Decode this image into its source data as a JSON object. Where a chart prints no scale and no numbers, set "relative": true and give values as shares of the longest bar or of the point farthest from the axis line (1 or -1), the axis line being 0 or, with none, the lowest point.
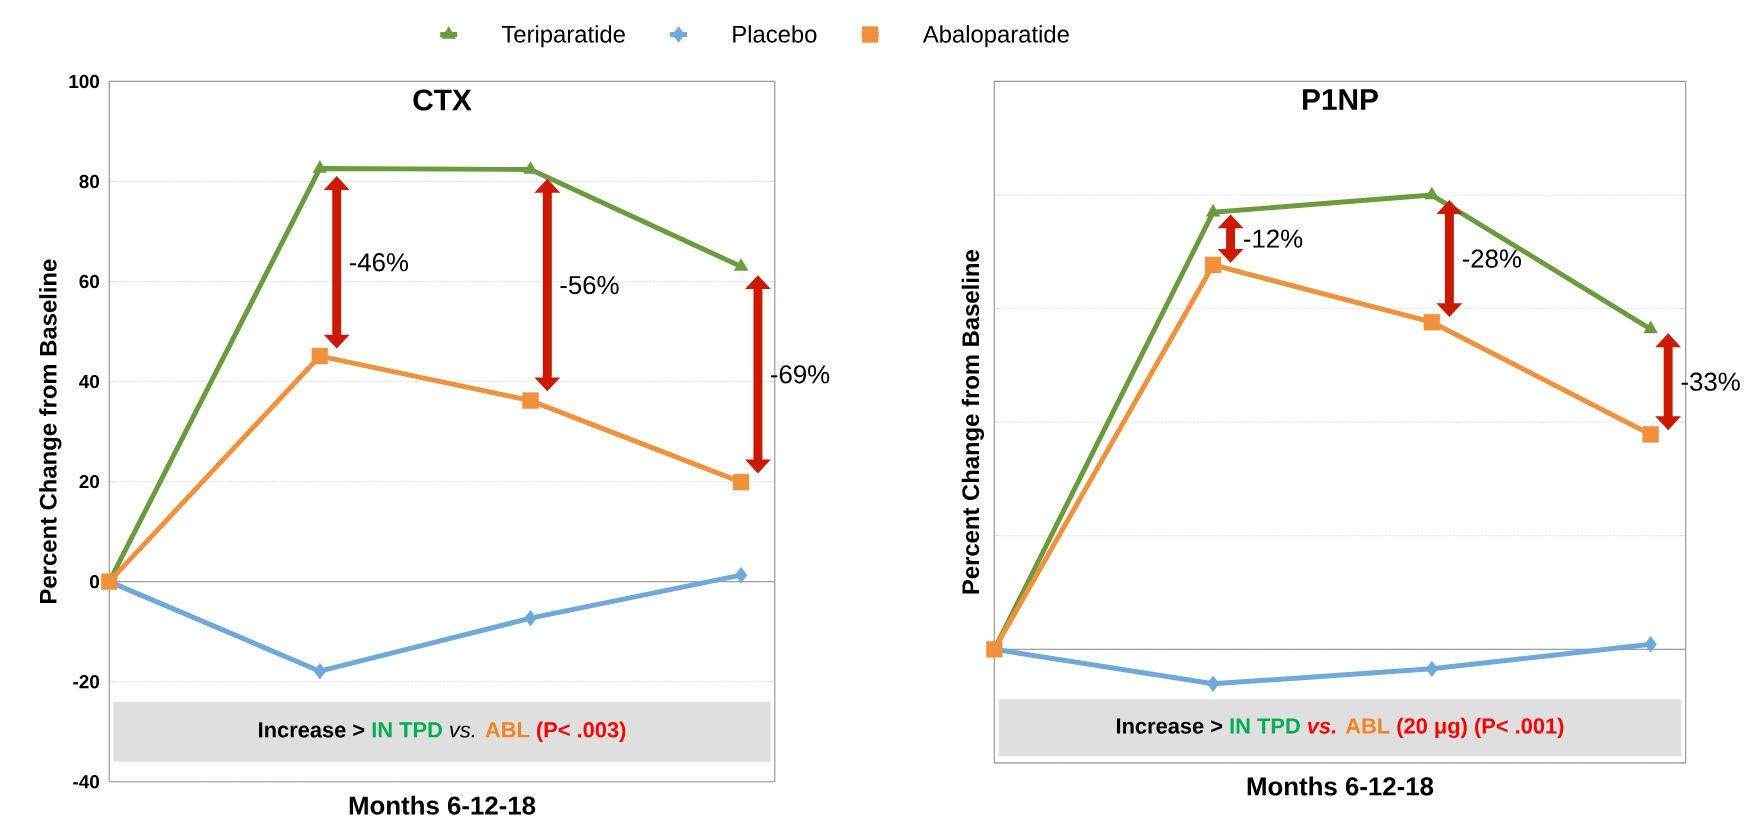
{
  "chart_data": [
    {
      "type": "line",
      "title": "CTX",
      "xlabel": "Months 6-12-18",
      "ylabel": "Percent Change from Baseline",
      "categories": [
        null,
        null,
        null,
        null
      ],
      "ylim": [
        -40,
        100
      ],
      "yticks": [
        -40,
        -20,
        0,
        20,
        40,
        60,
        80,
        100
      ],
      "grid": "y",
      "legend": "top",
      "tick_labels": "y",
      "series": [
        {
          "name": "Teriparatide",
          "color": "#6a9b3e",
          "marker": "triangle",
          "values": [
            0,
            82.6,
            82.4,
            63.0
          ]
        },
        {
          "name": "Placebo",
          "color": "#6fa8dc",
          "marker": "diamond",
          "values": [
            0,
            -17.9,
            -7.3,
            1.3
          ]
        },
        {
          "name": "Abaloparatide",
          "color": "#f0913e",
          "marker": "square",
          "values": [
            0,
            45.1,
            36.2,
            19.9
          ]
        }
      ],
      "bands": [
        {
          "axis": "y",
          "from": -24,
          "to": -36,
          "color": "#dfdfdf"
        }
      ],
      "annotations": [
        "-46%",
        "-56%",
        "-69%",
        "Increase >",
        "IN TPD",
        "vs.",
        "ABL",
        "(P< .003)"
      ]
    },
    {
      "type": "line",
      "title": "P1NP",
      "xlabel": "Months 6-12-18",
      "ylabel": "Percent Change from Baseline",
      "categories": [
        null,
        null,
        null,
        null
      ],
      "relative": true,
      "grid": "y",
      "tick_labels": false,
      "series": [
        {
          "color": "#6a9b3e",
          "marker": "triangle",
          "values": [
            0,
            0.962,
            1.0,
            0.705
          ]
        },
        {
          "color": "#6fa8dc",
          "marker": "diamond",
          "values": [
            0,
            -0.076,
            -0.043,
            0.011
          ]
        },
        {
          "color": "#f0913e",
          "marker": "square",
          "values": [
            0,
            0.846,
            0.72,
            0.473
          ]
        }
      ],
      "bands": [
        {
          "axis": "y",
          "from": -0.11,
          "to": -0.236,
          "color": "#dfdfdf"
        }
      ],
      "annotations": [
        "-12%",
        "-28%",
        "-33%",
        "Increase >",
        "IN TPD",
        "vs.",
        "ABL",
        "(20 μg) (P< .001)"
      ]
    }
  ]
}
